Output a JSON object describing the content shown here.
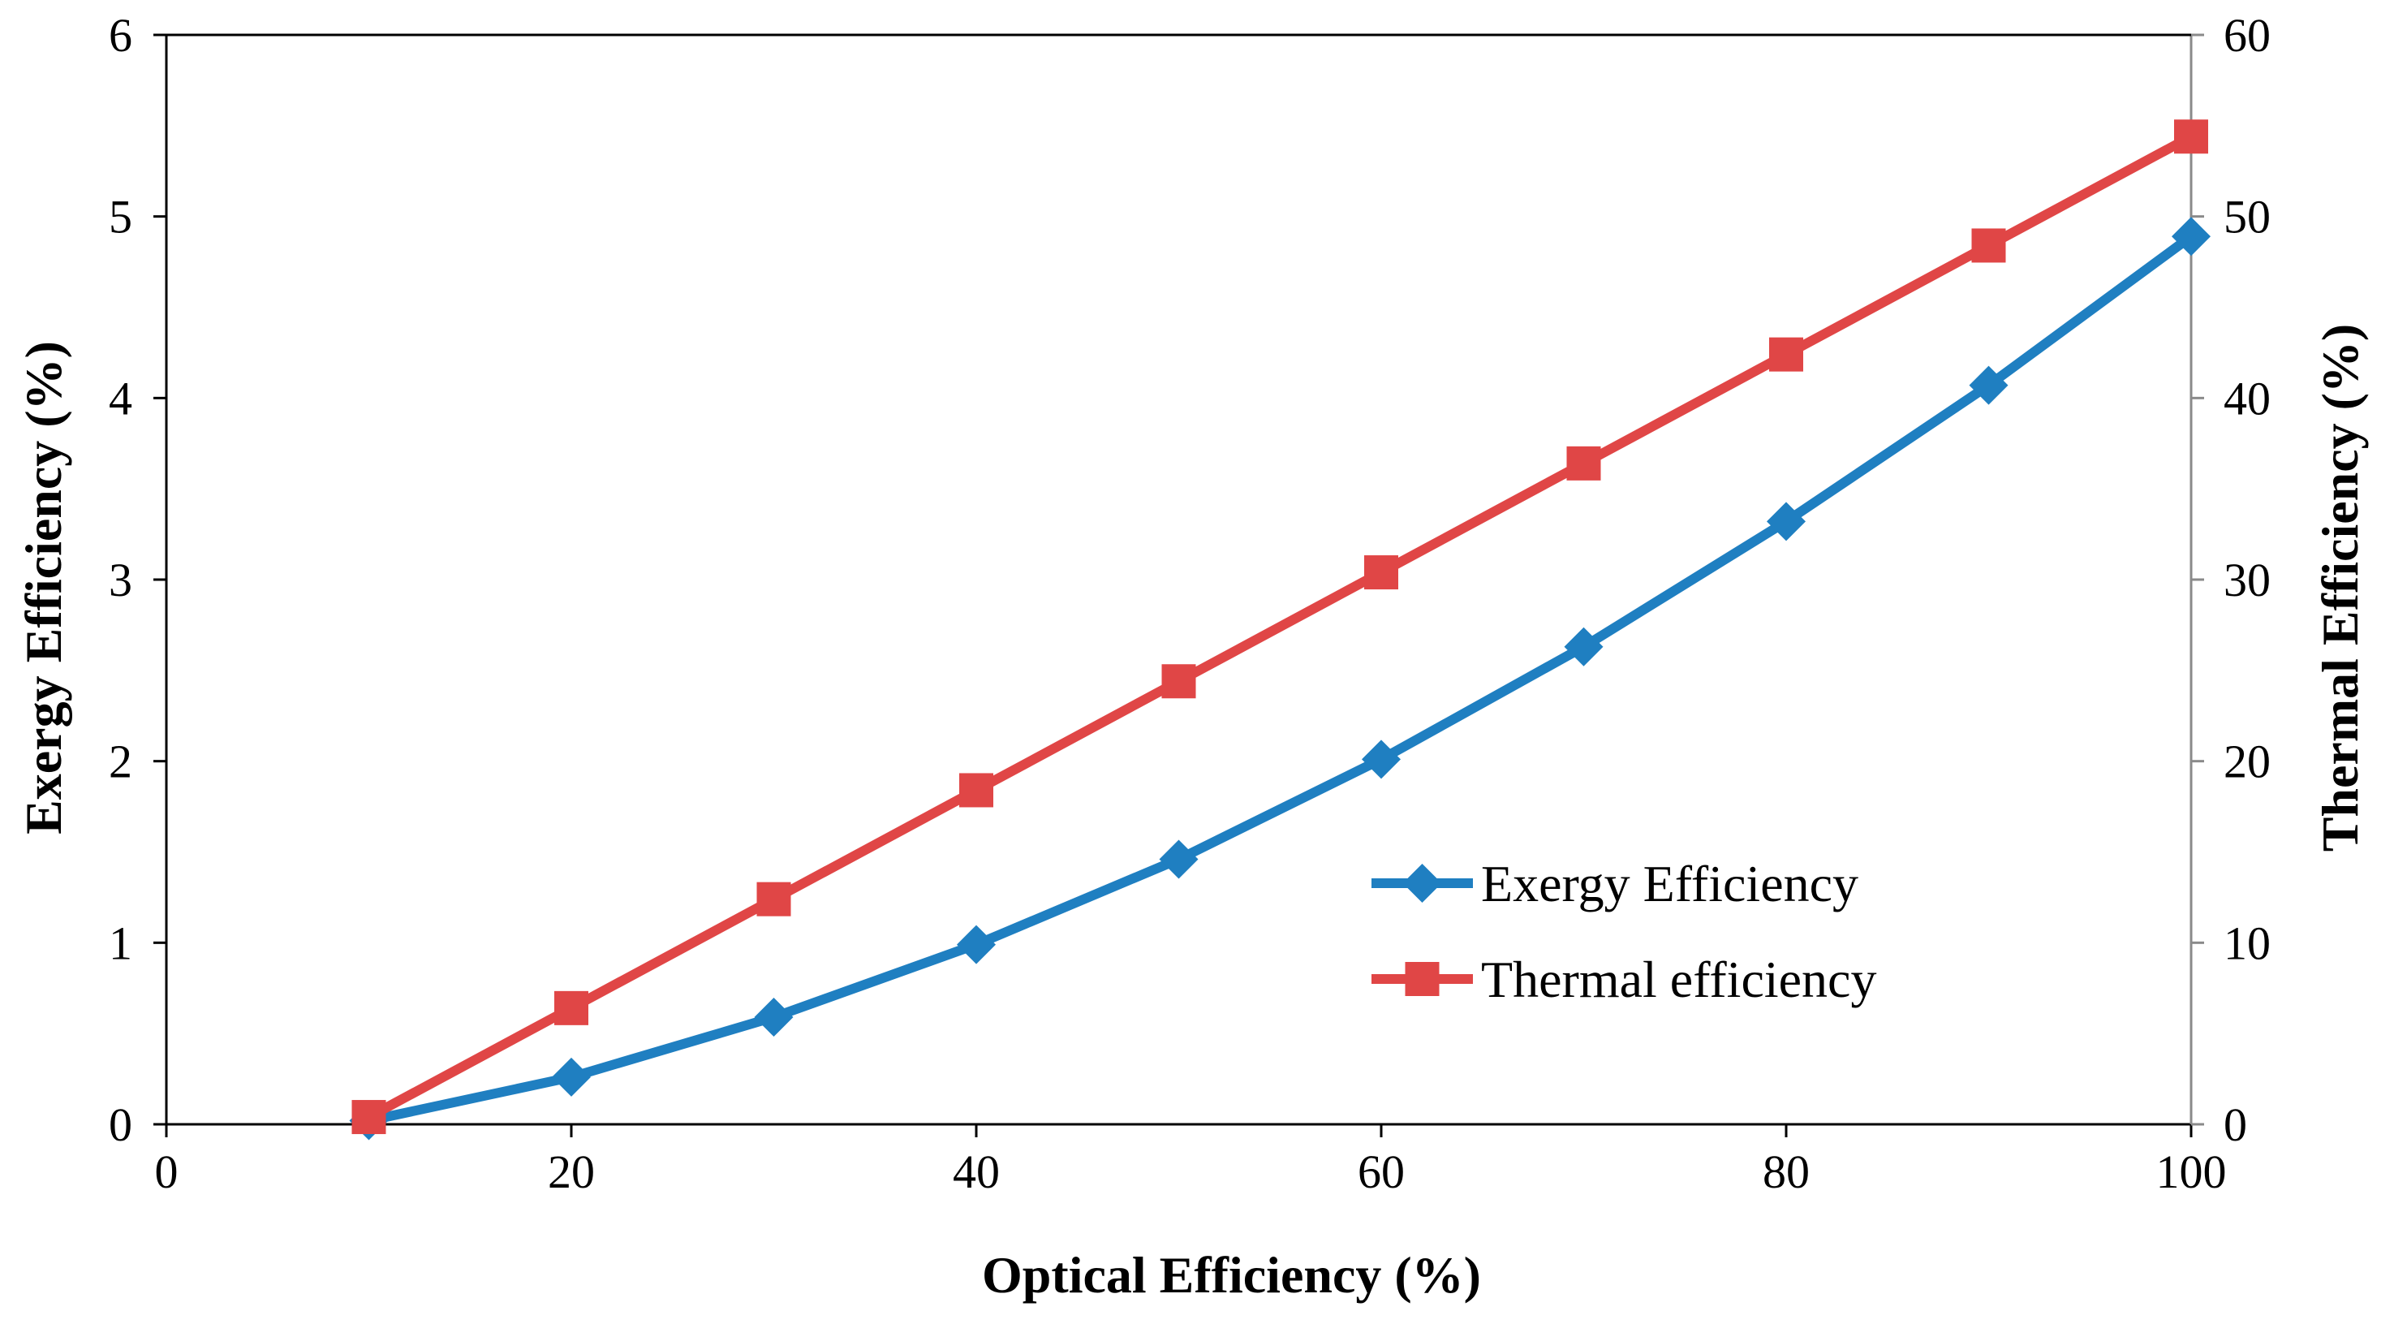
{
  "chart_data": {
    "type": "line",
    "title": "",
    "xlabel": "Optical Efficiency (%)",
    "ylabel": "Exergy Efficiency (%)",
    "y2label": "Thermal Efficiency (%)",
    "xlim": [
      0,
      100
    ],
    "ylim": [
      0,
      6
    ],
    "y2lim": [
      0,
      60
    ],
    "xticks": [
      "0",
      "20",
      "40",
      "60",
      "80",
      "100"
    ],
    "yticks": [
      "0",
      "1",
      "2",
      "3",
      "4",
      "5",
      "6"
    ],
    "y2ticks": [
      "0",
      "10",
      "20",
      "30",
      "40",
      "50",
      "60"
    ],
    "grid": false,
    "legend_position": "center-right",
    "x": [
      10,
      20,
      30,
      40,
      50,
      60,
      70,
      80,
      90,
      100
    ],
    "series": [
      {
        "name": "Exergy Efficiency",
        "axis": "left",
        "marker": "diamond",
        "color": "#1f7fc1",
        "values": [
          0.02,
          0.26,
          0.59,
          0.99,
          1.46,
          2.01,
          2.63,
          3.32,
          4.07,
          4.89
        ]
      },
      {
        "name": "Thermal efficiency",
        "axis": "right",
        "marker": "square",
        "color": "#e04646",
        "values": [
          0.4,
          6.4,
          12.4,
          18.4,
          24.4,
          30.4,
          36.4,
          42.4,
          48.4,
          54.4
        ]
      }
    ]
  }
}
